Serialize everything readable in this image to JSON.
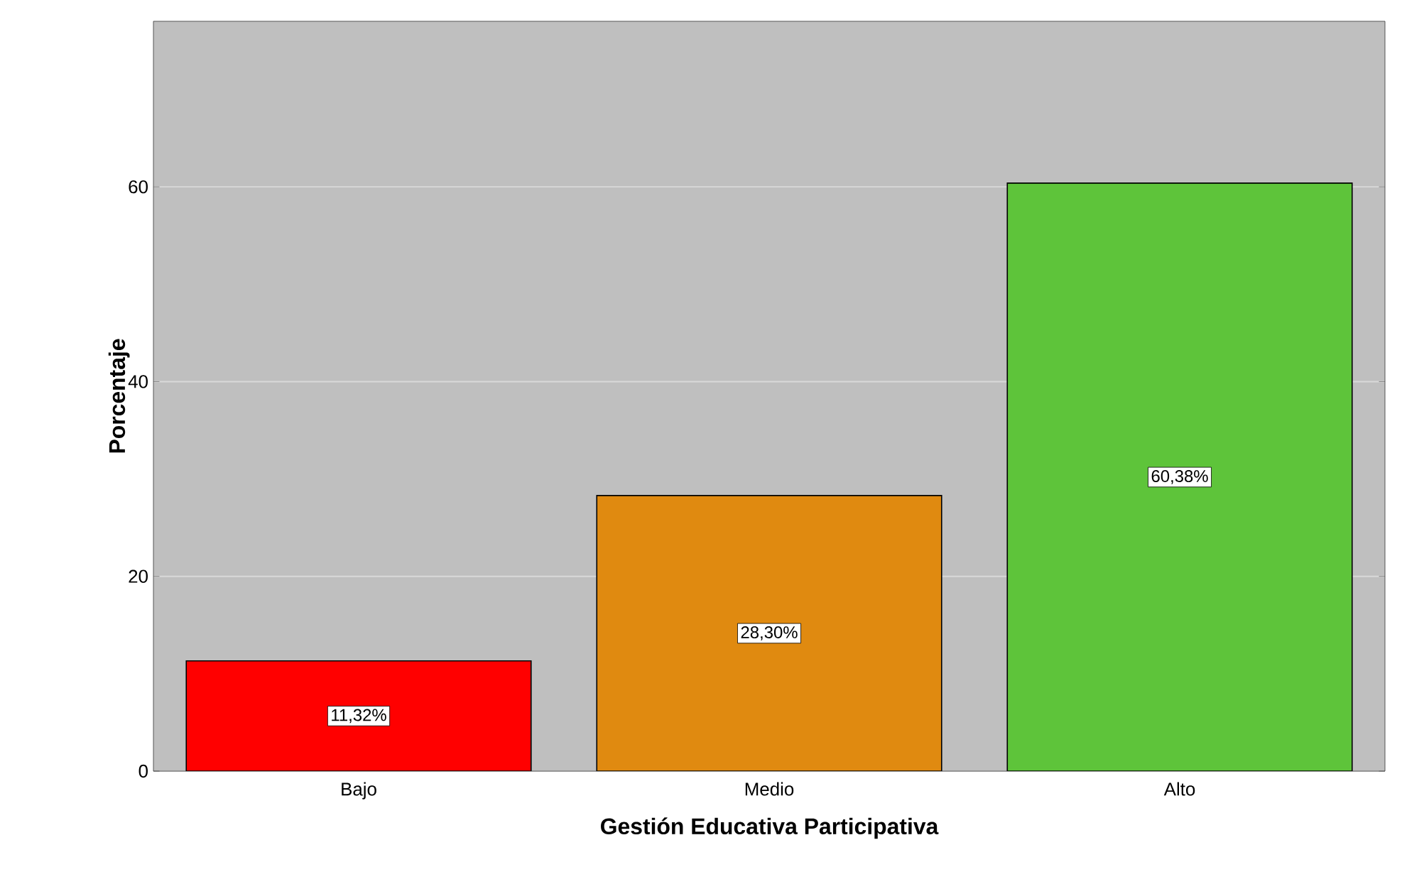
{
  "chart_data": {
    "type": "bar",
    "xlabel": "Gestión Educativa Participativa",
    "ylabel": "Porcentaje",
    "categories": [
      "Bajo",
      "Medio",
      "Alto"
    ],
    "values": [
      11.32,
      28.3,
      60.38
    ],
    "value_labels": [
      "11,32%",
      "28,30%",
      "60,38%"
    ],
    "colors": [
      "#ff0000",
      "#e08a10",
      "#5ec43a"
    ],
    "ylim": [
      0,
      77
    ],
    "yticks": [
      0,
      20,
      40,
      60
    ],
    "grid": "y"
  }
}
